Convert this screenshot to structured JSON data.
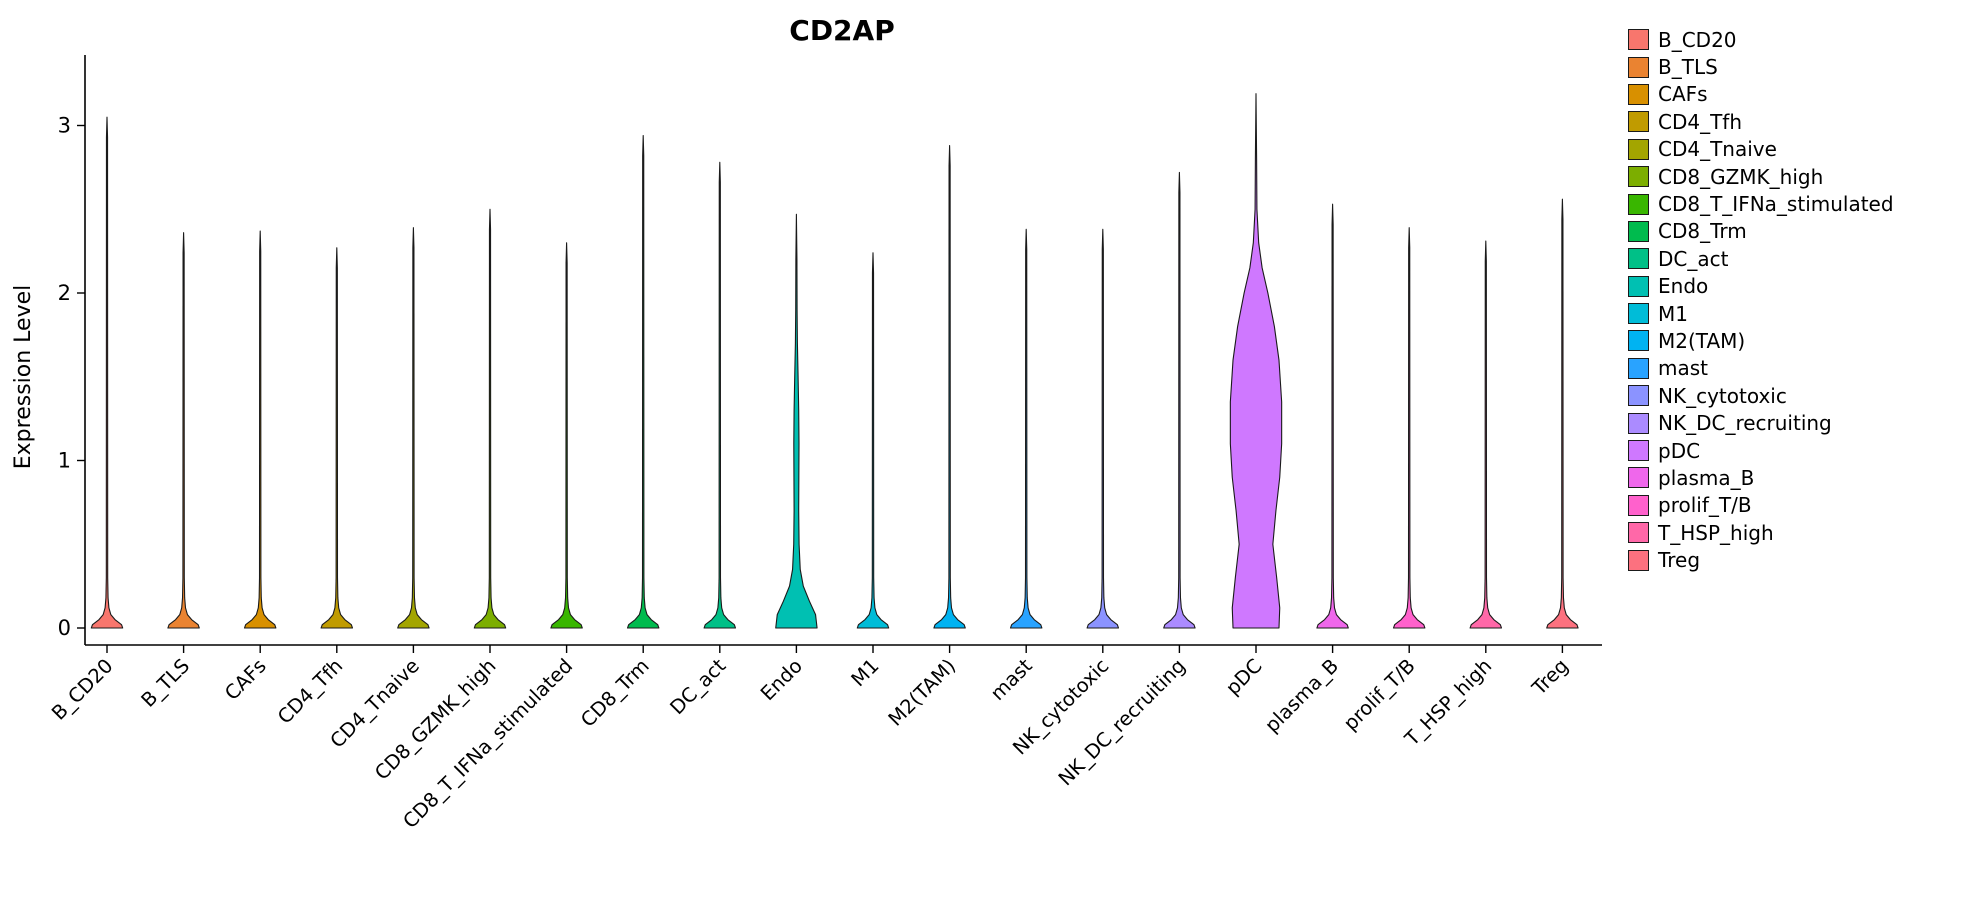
{
  "chart_data": {
    "type": "violin",
    "title": "CD2AP",
    "xlabel": "",
    "ylabel": "Expression Level",
    "ylim": [
      0,
      3.35
    ],
    "yticks": [
      0,
      1,
      2,
      3
    ],
    "grid": false,
    "legend_position": "right",
    "categories": [
      "B_CD20",
      "B_TLS",
      "CAFs",
      "CD4_Tfh",
      "CD4_Tnaive",
      "CD8_GZMK_high",
      "CD8_T_IFNa_stimulated",
      "CD8_Trm",
      "DC_act",
      "Endo",
      "M1",
      "M2(TAM)",
      "mast",
      "NK_cytotoxic",
      "NK_DC_recruiting",
      "pDC",
      "plasma_B",
      "prolif_T/B",
      "T_HSP_high",
      "Treg"
    ],
    "series": [
      {
        "name": "B_CD20",
        "color": "#F8766D",
        "max": 3.05
      },
      {
        "name": "B_TLS",
        "color": "#EA8331",
        "max": 2.36
      },
      {
        "name": "CAFs",
        "color": "#D89000",
        "max": 2.37
      },
      {
        "name": "CD4_Tfh",
        "color": "#C09B00",
        "max": 2.27
      },
      {
        "name": "CD4_Tnaive",
        "color": "#A3A500",
        "max": 2.39
      },
      {
        "name": "CD8_GZMK_high",
        "color": "#7CAE00",
        "max": 2.5
      },
      {
        "name": "CD8_T_IFNa_stimulated",
        "color": "#39B600",
        "max": 2.3
      },
      {
        "name": "CD8_Trm",
        "color": "#00BB4E",
        "max": 2.94
      },
      {
        "name": "DC_act",
        "color": "#00C087",
        "max": 2.78
      },
      {
        "name": "Endo",
        "color": "#00C0B2",
        "max": 2.47,
        "profile": [
          [
            0,
            0.27
          ],
          [
            0.08,
            0.25
          ],
          [
            0.16,
            0.17
          ],
          [
            0.25,
            0.09
          ],
          [
            0.35,
            0.05
          ],
          [
            0.5,
            0.035
          ],
          [
            0.7,
            0.03
          ],
          [
            0.9,
            0.032
          ],
          [
            1.1,
            0.034
          ],
          [
            1.3,
            0.03
          ],
          [
            1.5,
            0.022
          ],
          [
            1.7,
            0.013
          ],
          [
            1.9,
            0.009
          ],
          [
            2.2,
            0.007
          ],
          [
            2.47,
            0
          ]
        ]
      },
      {
        "name": "M1",
        "color": "#00BCD8",
        "max": 2.24
      },
      {
        "name": "M2(TAM)",
        "color": "#00B3F2",
        "max": 2.88
      },
      {
        "name": "mast",
        "color": "#29A3FF",
        "max": 2.38
      },
      {
        "name": "NK_cytotoxic",
        "color": "#8B93FF",
        "max": 2.38
      },
      {
        "name": "NK_DC_recruiting",
        "color": "#AB8BFF",
        "max": 2.72
      },
      {
        "name": "pDC",
        "color": "#CF78FF",
        "max": 3.19,
        "profile": [
          [
            0,
            0.3
          ],
          [
            0.12,
            0.31
          ],
          [
            0.3,
            0.27
          ],
          [
            0.5,
            0.22
          ],
          [
            0.7,
            0.26
          ],
          [
            0.9,
            0.31
          ],
          [
            1.1,
            0.335
          ],
          [
            1.35,
            0.335
          ],
          [
            1.6,
            0.3
          ],
          [
            1.8,
            0.24
          ],
          [
            2.0,
            0.155
          ],
          [
            2.15,
            0.08
          ],
          [
            2.3,
            0.035
          ],
          [
            2.5,
            0.012
          ],
          [
            2.8,
            0.008
          ],
          [
            3.19,
            0
          ]
        ]
      },
      {
        "name": "plasma_B",
        "color": "#EF67EB",
        "max": 2.53
      },
      {
        "name": "prolif_T/B",
        "color": "#FF61CC",
        "max": 2.39
      },
      {
        "name": "T_HSP_high",
        "color": "#FF68A8",
        "max": 2.31
      },
      {
        "name": "Treg",
        "color": "#FC717F",
        "max": 2.56
      }
    ]
  },
  "legend": {
    "items": [
      {
        "label": "B_CD20",
        "color": "#F8766D"
      },
      {
        "label": "B_TLS",
        "color": "#EA8331"
      },
      {
        "label": "CAFs",
        "color": "#D89000"
      },
      {
        "label": "CD4_Tfh",
        "color": "#C09B00"
      },
      {
        "label": "CD4_Tnaive",
        "color": "#A3A500"
      },
      {
        "label": "CD8_GZMK_high",
        "color": "#7CAE00"
      },
      {
        "label": "CD8_T_IFNa_stimulated",
        "color": "#39B600"
      },
      {
        "label": "CD8_Trm",
        "color": "#00BB4E"
      },
      {
        "label": "DC_act",
        "color": "#00C087"
      },
      {
        "label": "Endo",
        "color": "#00C0B2"
      },
      {
        "label": "M1",
        "color": "#00BCD8"
      },
      {
        "label": "M2(TAM)",
        "color": "#00B3F2"
      },
      {
        "label": "mast",
        "color": "#29A3FF"
      },
      {
        "label": "NK_cytotoxic",
        "color": "#8B93FF"
      },
      {
        "label": "NK_DC_recruiting",
        "color": "#AB8BFF"
      },
      {
        "label": "pDC",
        "color": "#CF78FF"
      },
      {
        "label": "plasma_B",
        "color": "#EF67EB"
      },
      {
        "label": "prolif_T/B",
        "color": "#FF61CC"
      },
      {
        "label": "T_HSP_high",
        "color": "#FF68A8"
      },
      {
        "label": "Treg",
        "color": "#FC717F"
      }
    ]
  }
}
